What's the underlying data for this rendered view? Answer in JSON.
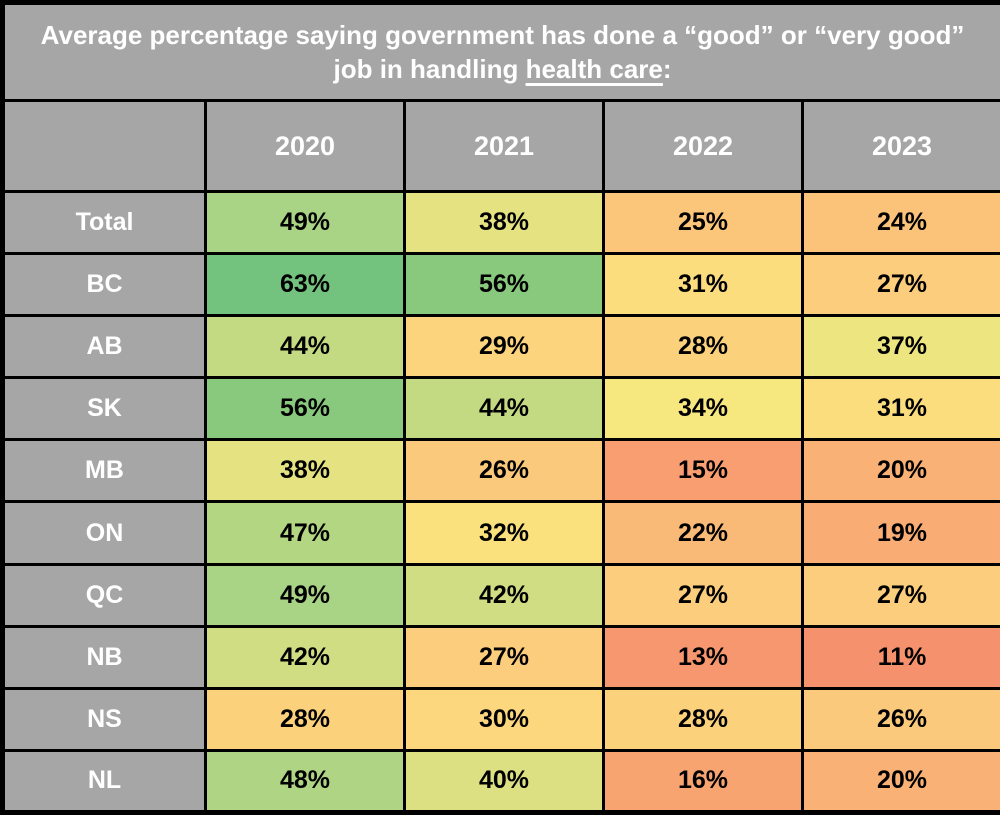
{
  "title": {
    "prefix": "Average percentage saying government has done a “good” or “very good” job in handling ",
    "underlined": "health care",
    "suffix": ":"
  },
  "palette": {
    "header_bg": "#A6A6A6",
    "border": "#000000",
    "header_text": "#FFFFFF",
    "value_text": "#000000",
    "scale_low": "#F5916D",
    "scale_mid": "#FCE17E",
    "scale_high": "#73C27E"
  },
  "table": {
    "corner_label": "",
    "year_headers": [
      "2020",
      "2021",
      "2022",
      "2023"
    ],
    "rows": [
      {
        "label": "Total",
        "values": [
          "49%",
          "38%",
          "25%",
          "24%"
        ],
        "colors": [
          "#A9D385",
          "#E4E281",
          "#FBC67A",
          "#FBC279"
        ]
      },
      {
        "label": "BC",
        "values": [
          "63%",
          "56%",
          "31%",
          "27%"
        ],
        "colors": [
          "#73C27E",
          "#88C97E",
          "#FCDD7E",
          "#FBCD7C"
        ]
      },
      {
        "label": "AB",
        "values": [
          "44%",
          "29%",
          "28%",
          "37%"
        ],
        "colors": [
          "#C4DA82",
          "#FCD47D",
          "#FBD17C",
          "#EDE580"
        ]
      },
      {
        "label": "SK",
        "values": [
          "56%",
          "44%",
          "34%",
          "31%"
        ],
        "colors": [
          "#88C97E",
          "#C4DA82",
          "#F6E77F",
          "#FCDD7E"
        ]
      },
      {
        "label": "MB",
        "values": [
          "38%",
          "26%",
          "15%",
          "20%"
        ],
        "colors": [
          "#E4E281",
          "#FBC97B",
          "#F89E70",
          "#F9B175"
        ]
      },
      {
        "label": "ON",
        "values": [
          "47%",
          "32%",
          "22%",
          "19%"
        ],
        "colors": [
          "#B3D682",
          "#FBE17E",
          "#FABA77",
          "#F9AD74"
        ]
      },
      {
        "label": "QC",
        "values": [
          "49%",
          "42%",
          "27%",
          "27%"
        ],
        "colors": [
          "#A9D385",
          "#D0DD82",
          "#FBCD7C",
          "#FBCD7C"
        ]
      },
      {
        "label": "NB",
        "values": [
          "42%",
          "27%",
          "13%",
          "11%"
        ],
        "colors": [
          "#D0DD82",
          "#FBCD7C",
          "#F6976F",
          "#F5916D"
        ]
      },
      {
        "label": "NS",
        "values": [
          "28%",
          "30%",
          "28%",
          "26%"
        ],
        "colors": [
          "#FBD17C",
          "#FCD77E",
          "#FBD17C",
          "#FBC97B"
        ]
      },
      {
        "label": "NL",
        "values": [
          "48%",
          "40%",
          "16%",
          "20%"
        ],
        "colors": [
          "#AFD483",
          "#DCE083",
          "#F8A471",
          "#F9B175"
        ]
      }
    ]
  },
  "chart_data": {
    "type": "heatmap",
    "title": "Average percentage saying government has done a “good” or “very good” job in handling health care:",
    "columns": [
      "2020",
      "2021",
      "2022",
      "2023"
    ],
    "rows": [
      "Total",
      "BC",
      "AB",
      "SK",
      "MB",
      "ON",
      "QC",
      "NB",
      "NS",
      "NL"
    ],
    "values": [
      [
        49,
        38,
        25,
        24
      ],
      [
        63,
        56,
        31,
        27
      ],
      [
        44,
        29,
        28,
        37
      ],
      [
        56,
        44,
        34,
        31
      ],
      [
        38,
        26,
        15,
        20
      ],
      [
        47,
        32,
        22,
        19
      ],
      [
        49,
        42,
        27,
        27
      ],
      [
        42,
        27,
        13,
        11
      ],
      [
        28,
        30,
        28,
        26
      ],
      [
        48,
        40,
        16,
        20
      ]
    ],
    "unit": "%",
    "legend_position": "none",
    "grid": true,
    "color_scale": {
      "low_color": "#F5916D",
      "mid_color": "#FCE17E",
      "high_color": "#73C27E",
      "low_value": 11,
      "high_value": 63
    }
  }
}
